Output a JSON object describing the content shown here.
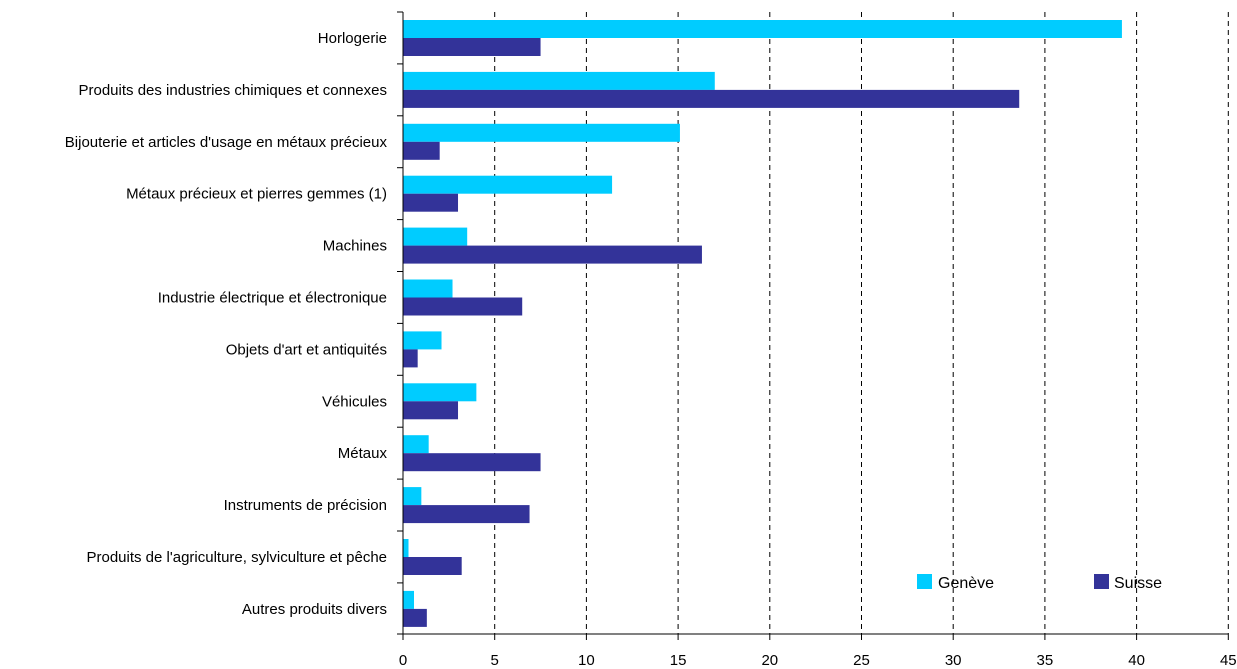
{
  "chart_data": {
    "type": "bar",
    "orientation": "horizontal",
    "categories": [
      "Horlogerie",
      "Produits des industries chimiques et connexes",
      "Bijouterie et articles d'usage en métaux précieux",
      "Métaux précieux et pierres gemmes (1)",
      "Machines",
      "Industrie électrique et électronique",
      "Objets d'art et antiquités",
      "Véhicules",
      "Métaux",
      "Instruments de précision",
      "Produits de l'agriculture, sylviculture et pêche",
      "Autres produits divers"
    ],
    "series": [
      {
        "name": "Genève",
        "color": "#00ccff",
        "values": [
          39.2,
          17.0,
          15.1,
          11.4,
          3.5,
          2.7,
          2.1,
          4.0,
          1.4,
          1.0,
          0.3,
          0.6
        ]
      },
      {
        "name": "Suisse",
        "color": "#333399",
        "values": [
          7.5,
          33.6,
          2.0,
          3.0,
          16.3,
          6.5,
          0.8,
          3.0,
          7.5,
          6.9,
          3.2,
          1.3
        ]
      }
    ],
    "x_ticks": [
      "0",
      "5",
      "10",
      "15",
      "20",
      "25",
      "30",
      "35",
      "40",
      "45"
    ],
    "xlim": [
      0,
      45
    ],
    "grid": "vertical dashed",
    "legend_position": "bottom-right",
    "title": "",
    "xlabel": "",
    "ylabel": ""
  }
}
